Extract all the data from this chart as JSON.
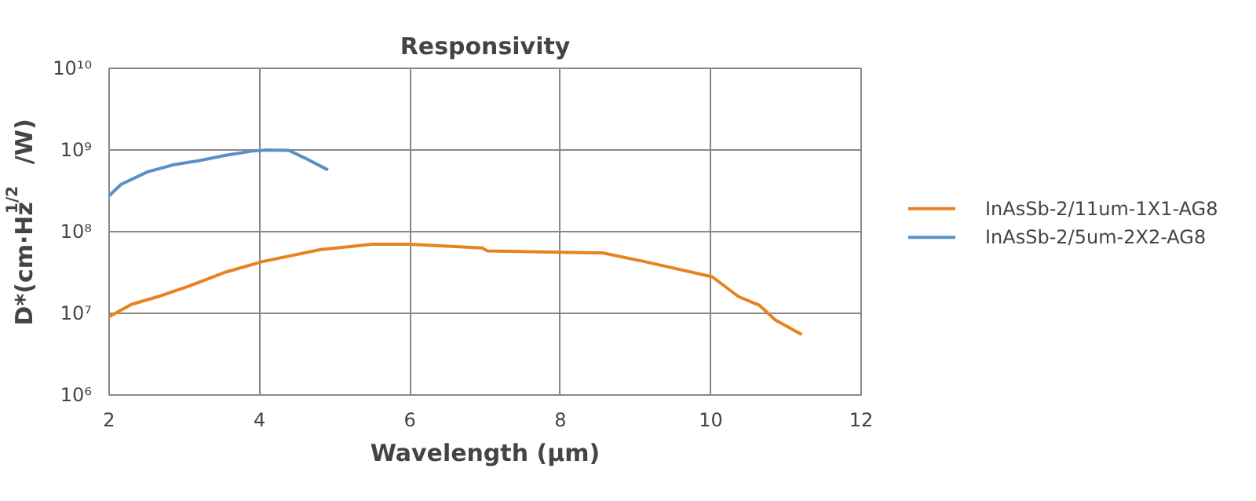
{
  "chart_data": {
    "type": "line",
    "title": "Responsivity",
    "xlabel": "Wavelength (μm)",
    "ylabel": "D*(cm·Hz$^{1/2}$/W)",
    "log": "y",
    "xlim": [
      2,
      12
    ],
    "xticks": [
      2,
      4,
      6,
      8,
      10,
      12
    ],
    "ylim": [
      1000000,
      10000000000
    ],
    "yticks": [
      {
        "value": 1000000,
        "label": "10⁶"
      },
      {
        "value": 10000000,
        "label": "10⁷"
      },
      {
        "value": 100000000,
        "label": "10⁸"
      },
      {
        "value": 1000000000,
        "label": "10⁹"
      },
      {
        "value": 10000000000,
        "label": "10¹⁰"
      }
    ],
    "grid": true,
    "legend": "right",
    "line_style": "solid",
    "marker": "none",
    "series": [
      {
        "name": "InAsSb-2/11um-1X1-AG8",
        "color": "#e8821e",
        "x": [
          2.0,
          2.3,
          2.65,
          3.06,
          3.55,
          4.04,
          4.8,
          5.5,
          5.99,
          6.96,
          7.03,
          8.0,
          8.56,
          9.12,
          10.02,
          10.37,
          10.65,
          10.86,
          11.21
        ],
        "values": [
          9100000,
          12900000,
          16000000,
          21500000,
          32000000,
          43000000,
          60000000,
          70000000,
          70000000,
          63000000,
          58000000,
          56000000,
          55000000,
          43000000,
          28000000,
          16000000,
          12500000,
          8300000,
          5500000
        ]
      },
      {
        "name": "InAsSb-2/5um-2X2-AG8",
        "color": "#5b8fc9",
        "x": [
          2.0,
          2.16,
          2.51,
          2.86,
          3.2,
          3.55,
          3.9,
          4.1,
          4.39,
          4.6,
          4.91
        ],
        "values": [
          275000000,
          380000000,
          540000000,
          660000000,
          740000000,
          860000000,
          970000000,
          1000000000,
          990000000,
          800000000,
          570000000
        ]
      }
    ]
  }
}
